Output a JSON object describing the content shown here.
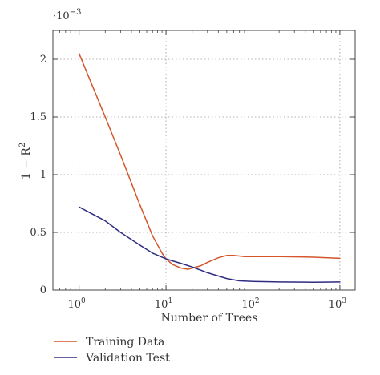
{
  "chart_data": {
    "type": "line",
    "title": "",
    "xlabel": "Number of Trees",
    "ylabel_base": "1 − R",
    "ylabel_sup": "2",
    "x_scale": "log",
    "xlim": [
      0.5,
      1500
    ],
    "ylim": [
      0,
      2.25
    ],
    "y_multiplier": {
      "base": "·10",
      "exponent": "−3"
    },
    "x_ticks": [
      {
        "value": 1,
        "base": "10",
        "exp": "0"
      },
      {
        "value": 10,
        "base": "10",
        "exp": "1"
      },
      {
        "value": 100,
        "base": "10",
        "exp": "2"
      },
      {
        "value": 1000,
        "base": "10",
        "exp": "3"
      }
    ],
    "y_ticks": [
      {
        "value": 0,
        "label": "0"
      },
      {
        "value": 0.5,
        "label": "0.5"
      },
      {
        "value": 1,
        "label": "1"
      },
      {
        "value": 1.5,
        "label": "1.5"
      },
      {
        "value": 2,
        "label": "2"
      }
    ],
    "grid": true,
    "legend_position": "below",
    "series": [
      {
        "name": "Training Data",
        "color": "#d4562a",
        "points": [
          [
            1,
            2.05
          ],
          [
            2,
            1.5
          ],
          [
            3,
            1.17
          ],
          [
            5,
            0.74
          ],
          [
            7,
            0.47
          ],
          [
            9,
            0.32
          ],
          [
            10,
            0.27
          ],
          [
            12,
            0.22
          ],
          [
            15,
            0.19
          ],
          [
            18,
            0.18
          ],
          [
            20,
            0.19
          ],
          [
            25,
            0.21
          ],
          [
            30,
            0.24
          ],
          [
            40,
            0.28
          ],
          [
            50,
            0.3
          ],
          [
            60,
            0.3
          ],
          [
            80,
            0.29
          ],
          [
            100,
            0.29
          ],
          [
            200,
            0.29
          ],
          [
            500,
            0.285
          ],
          [
            1000,
            0.275
          ]
        ]
      },
      {
        "name": "Validation Test",
        "color": "#2f2d80",
        "points": [
          [
            1,
            0.72
          ],
          [
            2,
            0.6
          ],
          [
            3,
            0.5
          ],
          [
            5,
            0.39
          ],
          [
            7,
            0.32
          ],
          [
            10,
            0.27
          ],
          [
            15,
            0.23
          ],
          [
            20,
            0.2
          ],
          [
            30,
            0.15
          ],
          [
            50,
            0.1
          ],
          [
            70,
            0.08
          ],
          [
            100,
            0.075
          ],
          [
            200,
            0.07
          ],
          [
            500,
            0.068
          ],
          [
            1000,
            0.07
          ]
        ]
      }
    ]
  }
}
